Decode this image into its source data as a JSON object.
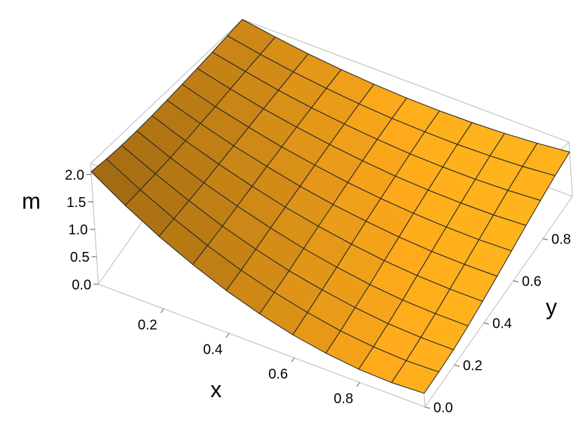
{
  "chart_data": {
    "type": "surface",
    "xlabel": "x",
    "ylabel": "y",
    "zlabel": "m",
    "color": "#f7a21b",
    "x": [
      0,
      0.1,
      0.2,
      0.3,
      0.4,
      0.5,
      0.6,
      0.7,
      0.8,
      0.9,
      1
    ],
    "y": [
      0,
      0.1,
      0.2,
      0.3,
      0.4,
      0.5,
      0.6,
      0.7,
      0.8,
      0.9,
      1
    ],
    "z": [
      [
        2.05,
        1.66,
        1.32,
        1.03,
        0.78,
        0.58,
        0.42,
        0.31,
        0.24,
        0.22,
        0.25
      ],
      [
        2.01,
        1.65,
        1.33,
        1.05,
        0.81,
        0.62,
        0.47,
        0.35,
        0.28,
        0.25,
        0.27
      ],
      [
        1.98,
        1.65,
        1.35,
        1.08,
        0.86,
        0.67,
        0.53,
        0.42,
        0.34,
        0.31,
        0.31
      ],
      [
        1.97,
        1.65,
        1.37,
        1.13,
        0.92,
        0.74,
        0.6,
        0.49,
        0.42,
        0.39,
        0.39
      ],
      [
        1.97,
        1.67,
        1.41,
        1.18,
        0.98,
        0.82,
        0.69,
        0.59,
        0.53,
        0.5,
        0.5
      ],
      [
        1.98,
        1.7,
        1.45,
        1.24,
        1.05,
        0.9,
        0.79,
        0.7,
        0.65,
        0.63,
        0.64
      ],
      [
        2.0,
        1.73,
        1.5,
        1.3,
        1.14,
        1.0,
        0.9,
        0.83,
        0.79,
        0.78,
        0.81
      ],
      [
        2.03,
        1.78,
        1.56,
        1.38,
        1.23,
        1.11,
        1.02,
        0.97,
        0.95,
        0.96,
        1.01
      ],
      [
        2.07,
        1.84,
        1.63,
        1.46,
        1.33,
        1.23,
        1.16,
        1.13,
        1.13,
        1.17,
        1.24
      ],
      [
        2.13,
        1.9,
        1.71,
        1.56,
        1.44,
        1.36,
        1.32,
        1.31,
        1.34,
        1.4,
        1.51
      ],
      [
        2.2,
        1.98,
        1.8,
        1.66,
        1.56,
        1.5,
        1.48,
        1.5,
        1.56,
        1.66,
        1.8
      ]
    ],
    "xlim": [
      0,
      1
    ],
    "ylim": [
      0,
      1
    ],
    "zlim": [
      0,
      2.2
    ],
    "xticks": [
      0.2,
      0.4,
      0.6,
      0.8
    ],
    "yticks": [
      {
        "value": 0,
        "label": "0.0"
      },
      0.2,
      0.4,
      0.6,
      0.8
    ],
    "zticks": [
      {
        "value": 0,
        "label": "0.0"
      },
      0.5,
      {
        "value": 1,
        "label": "1.0"
      },
      1.5,
      {
        "value": 2,
        "label": "2.0"
      }
    ]
  }
}
